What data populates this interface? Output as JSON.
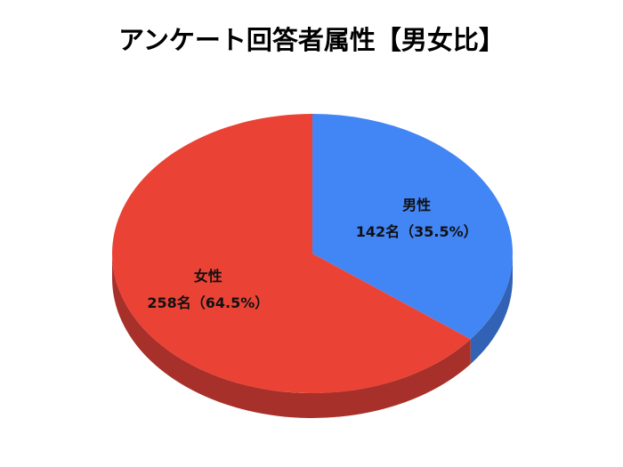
{
  "chart_data": {
    "type": "pie",
    "style": "3d",
    "title": "アンケート回答者属性【男女比】",
    "start_angle": "12 o'clock",
    "direction": "clockwise",
    "slices": [
      {
        "name": "男性",
        "value": 142,
        "percent": 35.5,
        "label": "142名（35.5%）",
        "color": "#4285F4",
        "side_color": "#3162B5"
      },
      {
        "name": "女性",
        "value": 258,
        "percent": 64.5,
        "label": "258名（64.5%）",
        "color": "#EA4335",
        "side_color": "#A8302A"
      }
    ]
  }
}
